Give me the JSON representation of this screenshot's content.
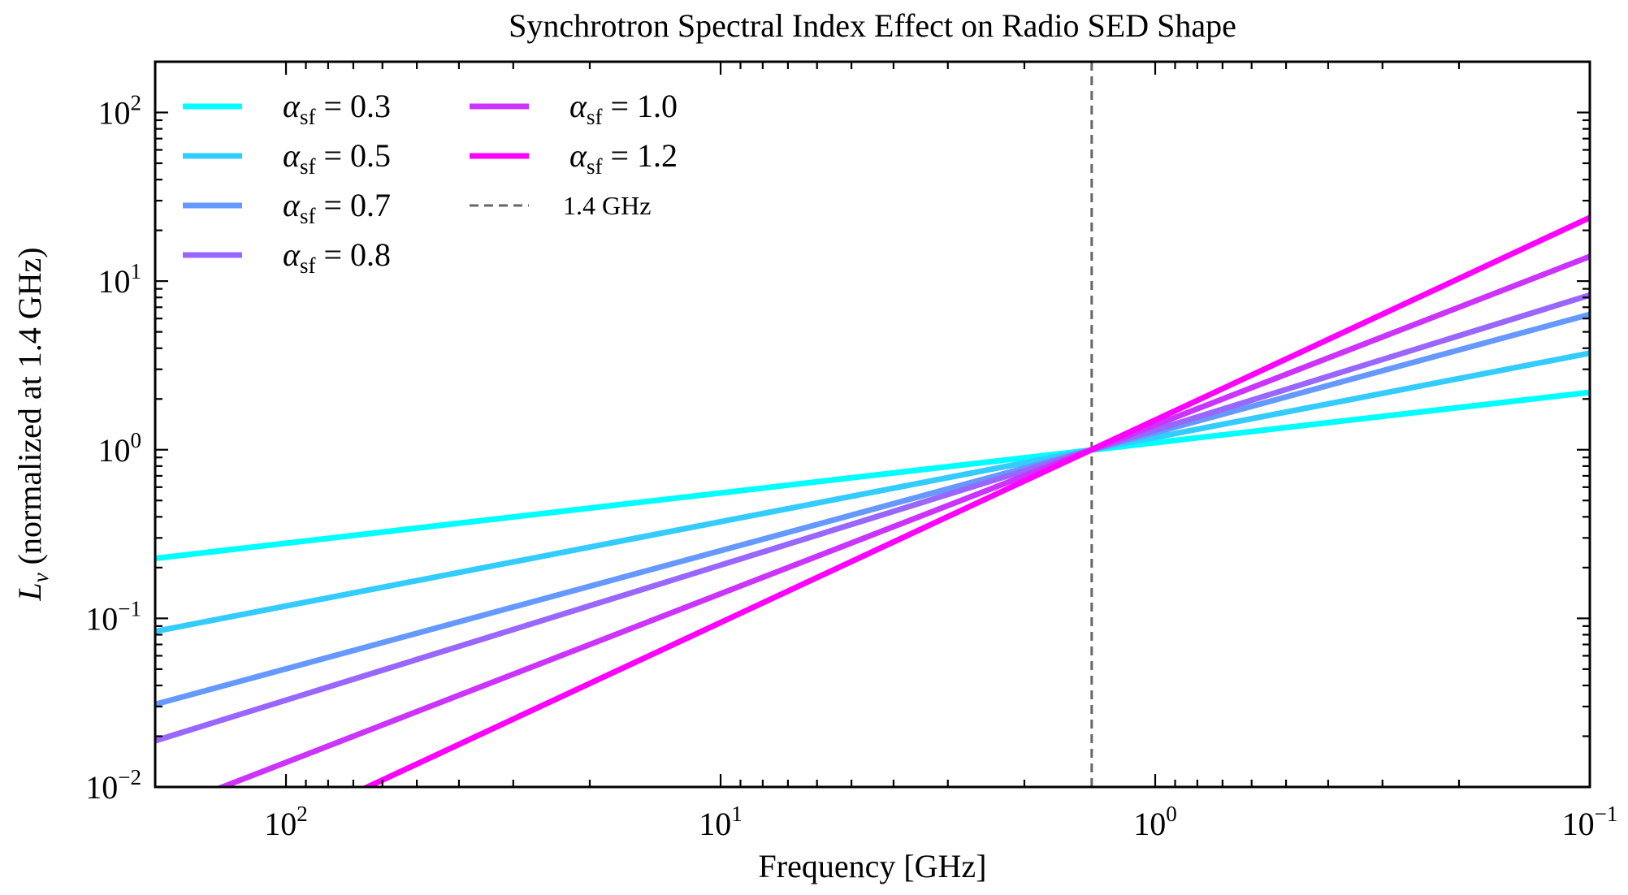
{
  "chart_data": {
    "type": "line",
    "title": "Synchrotron Spectral Index Effect on Radio SED Shape",
    "xlabel": "Frequency [GHz]",
    "ylabel": {
      "symbol": "L",
      "subscript": "ν",
      "rest": " (normalized at 1.4 GHz)"
    },
    "x_scale": "log",
    "y_scale": "log",
    "x_reversed": true,
    "xlim": [
      200,
      0.1
    ],
    "ylim": [
      0.01,
      200
    ],
    "grid": false,
    "legend_position": "upper-left",
    "x_ticks": [
      {
        "value": 100,
        "base": "10",
        "exp": "2"
      },
      {
        "value": 10,
        "base": "10",
        "exp": "1"
      },
      {
        "value": 1,
        "base": "10",
        "exp": "0"
      },
      {
        "value": 0.1,
        "base": "10",
        "exp": "−1"
      }
    ],
    "y_ticks": [
      {
        "value": 100,
        "base": "10",
        "exp": "2"
      },
      {
        "value": 10,
        "base": "10",
        "exp": "1"
      },
      {
        "value": 1,
        "base": "10",
        "exp": "0"
      },
      {
        "value": 0.1,
        "base": "10",
        "exp": "−1"
      },
      {
        "value": 0.01,
        "base": "10",
        "exp": "−2"
      }
    ],
    "series": [
      {
        "name_symbol": "α",
        "name_sub": "sf",
        "name_value": " = 0.3",
        "alpha": 0.3,
        "color": "#00ffff",
        "x": [
          200,
          0.1
        ],
        "y": [
          0.227,
          2.19
        ]
      },
      {
        "name_symbol": "α",
        "name_sub": "sf",
        "name_value": " = 0.5",
        "alpha": 0.5,
        "color": "#33ccff",
        "x": [
          200,
          0.1
        ],
        "y": [
          0.0837,
          3.74
        ]
      },
      {
        "name_symbol": "α",
        "name_sub": "sf",
        "name_value": " = 0.7",
        "alpha": 0.7,
        "color": "#6699ff",
        "x": [
          200,
          0.1
        ],
        "y": [
          0.0309,
          6.35
        ]
      },
      {
        "name_symbol": "α",
        "name_sub": "sf",
        "name_value": " = 0.8",
        "alpha": 0.8,
        "color": "#9966ff",
        "x": [
          200,
          0.1
        ],
        "y": [
          0.0188,
          8.27
        ]
      },
      {
        "name_symbol": "α",
        "name_sub": "sf",
        "name_value": " = 1.0",
        "alpha": 1.0,
        "color": "#cc33ff",
        "x": [
          200,
          0.1
        ],
        "y": [
          0.007,
          14.0
        ]
      },
      {
        "name_symbol": "α",
        "name_sub": "sf",
        "name_value": " = 1.2",
        "alpha": 1.2,
        "color": "#ff00ff",
        "x": [
          200,
          0.1
        ],
        "y": [
          0.00259,
          23.8
        ]
      }
    ],
    "reference_line": {
      "label": "1.4 GHz",
      "x": 1.4,
      "color": "#666666",
      "style": "dashed"
    }
  }
}
